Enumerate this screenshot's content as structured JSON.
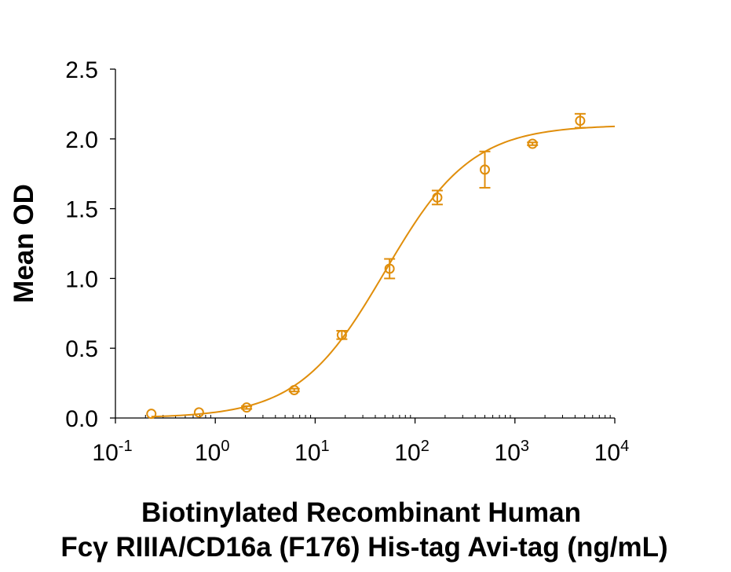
{
  "chart_data": {
    "type": "scatter",
    "xlabel_line1": "Biotinylated Recombinant Human",
    "xlabel_line2": "Fcγ RIIIA/CD16a (F176) His-tag Avi-tag (ng/mL)",
    "ylabel": "Mean OD",
    "x_scale": "log10",
    "xlim": [
      0.1,
      10000
    ],
    "ylim": [
      0,
      2.5
    ],
    "y_ticks": [
      "0.0",
      "0.5",
      "1.0",
      "1.5",
      "2.0",
      "2.5"
    ],
    "x_ticks": [
      {
        "base": "10",
        "exp": "-1"
      },
      {
        "base": "10",
        "exp": "0"
      },
      {
        "base": "10",
        "exp": "1"
      },
      {
        "base": "10",
        "exp": "2"
      },
      {
        "base": "10",
        "exp": "3"
      },
      {
        "base": "10",
        "exp": "4"
      }
    ],
    "grid": false,
    "series": [
      {
        "color": "#E08E0B",
        "points": [
          {
            "x": 0.229,
            "y": 0.03,
            "err": 0.0
          },
          {
            "x": 0.686,
            "y": 0.04,
            "err": 0.0
          },
          {
            "x": 2.06,
            "y": 0.075,
            "err": 0.01
          },
          {
            "x": 6.17,
            "y": 0.2,
            "err": 0.01
          },
          {
            "x": 18.5,
            "y": 0.595,
            "err": 0.03
          },
          {
            "x": 55.6,
            "y": 1.07,
            "err": 0.07
          },
          {
            "x": 167,
            "y": 1.58,
            "err": 0.05
          },
          {
            "x": 500,
            "y": 1.78,
            "err": 0.13
          },
          {
            "x": 1500,
            "y": 1.965,
            "err": 0.01
          },
          {
            "x": 4500,
            "y": 2.13,
            "err": 0.05
          }
        ],
        "fit": {
          "model": "4PL",
          "bottom": 0.0,
          "top": 2.1,
          "ec50": 50,
          "hill": 1.0
        }
      }
    ]
  }
}
